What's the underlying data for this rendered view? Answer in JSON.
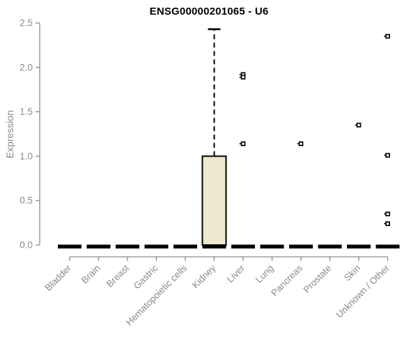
{
  "chart_data": {
    "type": "box",
    "title": "ENSG00000201065 - U6",
    "xlabel": "",
    "ylabel": "Expression",
    "ylim": [
      0,
      2.5
    ],
    "yticks": [
      "0.0",
      "0.5",
      "1.0",
      "1.5",
      "2.0",
      "2.5"
    ],
    "ytick_values": [
      0,
      0.5,
      1.0,
      1.5,
      2.0,
      2.5
    ],
    "grid": "off",
    "legend": "none",
    "categories": [
      "Bladder",
      "Brain",
      "Breast",
      "Gastric",
      "Hematopoietic cells",
      "Kidney",
      "Liver",
      "Lung",
      "Pancreas",
      "Prostate",
      "Skin",
      "Unknown / Other"
    ],
    "boxes": [
      {
        "category": "Bladder",
        "whisker_low": 0,
        "q1": 0,
        "median": 0,
        "q3": 0,
        "whisker_high": 0,
        "outliers": []
      },
      {
        "category": "Brain",
        "whisker_low": 0,
        "q1": 0,
        "median": 0,
        "q3": 0,
        "whisker_high": 0,
        "outliers": []
      },
      {
        "category": "Breast",
        "whisker_low": 0,
        "q1": 0,
        "median": 0,
        "q3": 0,
        "whisker_high": 0,
        "outliers": []
      },
      {
        "category": "Gastric",
        "whisker_low": 0,
        "q1": 0,
        "median": 0,
        "q3": 0,
        "whisker_high": 0,
        "outliers": []
      },
      {
        "category": "Hematopoietic cells",
        "whisker_low": 0,
        "q1": 0,
        "median": 0,
        "q3": 0,
        "whisker_high": 0,
        "outliers": []
      },
      {
        "category": "Kidney",
        "whisker_low": 0,
        "q1": 0,
        "median": 0,
        "q3": 1.0,
        "whisker_high": 2.43,
        "outliers": []
      },
      {
        "category": "Liver",
        "whisker_low": 0,
        "q1": 0,
        "median": 0,
        "q3": 0,
        "whisker_high": 0,
        "outliers": [
          1.92,
          1.89,
          1.14
        ]
      },
      {
        "category": "Lung",
        "whisker_low": 0,
        "q1": 0,
        "median": 0,
        "q3": 0,
        "whisker_high": 0,
        "outliers": []
      },
      {
        "category": "Pancreas",
        "whisker_low": 0,
        "q1": 0,
        "median": 0,
        "q3": 0,
        "whisker_high": 0,
        "outliers": [
          1.14
        ]
      },
      {
        "category": "Prostate",
        "whisker_low": 0,
        "q1": 0,
        "median": 0,
        "q3": 0,
        "whisker_high": 0,
        "outliers": []
      },
      {
        "category": "Skin",
        "whisker_low": 0,
        "q1": 0,
        "median": 0,
        "q3": 0,
        "whisker_high": 0,
        "outliers": [
          1.35
        ]
      },
      {
        "category": "Unknown / Other",
        "whisker_low": 0,
        "q1": 0,
        "median": 0,
        "q3": 0,
        "whisker_high": 0,
        "outliers": [
          2.35,
          1.01,
          0.35,
          0.24
        ]
      }
    ]
  },
  "colors": {
    "box_fill": "#EDE8CD",
    "box_stroke": "#000000",
    "axis": "#8a8a8a",
    "tick_label": "#8a8a8a",
    "title": "#000000",
    "background": "#ffffff"
  }
}
